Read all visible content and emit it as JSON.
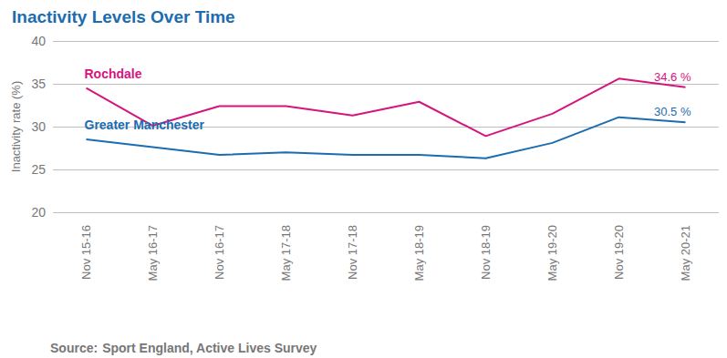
{
  "chart_data": {
    "type": "line",
    "title": "Inactivity Levels Over Time",
    "y_label": "Inactivity rate (%)",
    "source": {
      "label": "Source:",
      "text": "Sport England, Active Lives Survey"
    },
    "categories": [
      "Nov 15-16",
      "May 16-17",
      "Nov 16-17",
      "May 17-18",
      "Nov 17-18",
      "May 18-19",
      "Nov 18-19",
      "May 19-20",
      "Nov 19-20",
      "May 20-21"
    ],
    "series": [
      {
        "name": "Rochdale",
        "color": "#d4157f",
        "marker": "none",
        "values": [
          34.5,
          30.1,
          32.4,
          32.4,
          31.3,
          32.9,
          28.9,
          31.5,
          35.6,
          34.6
        ],
        "value_labels": [
          null,
          null,
          null,
          null,
          null,
          null,
          null,
          null,
          null,
          "34.6 %"
        ]
      },
      {
        "name": "Greater Manchester",
        "color": "#1c6cb0",
        "marker": "none",
        "values": [
          28.5,
          27.6,
          26.7,
          27.0,
          26.7,
          26.7,
          26.3,
          28.1,
          31.1,
          30.5
        ],
        "value_labels": [
          null,
          null,
          null,
          null,
          null,
          null,
          null,
          null,
          null,
          "30.5 %"
        ]
      }
    ],
    "ylim": [
      20,
      40
    ],
    "yticks": [
      20,
      25,
      30,
      35,
      40
    ],
    "grid": true
  }
}
